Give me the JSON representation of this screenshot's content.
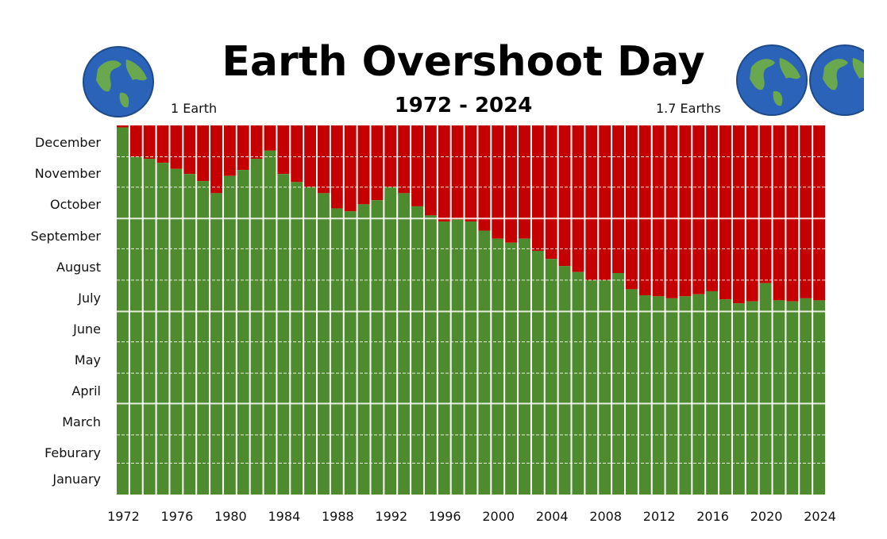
{
  "chart_data": {
    "type": "bar",
    "title": "Earth Overshoot Day",
    "subtitle": "1972 - 2024",
    "annotations": {
      "left": "1 Earth",
      "right": "1.7 Earths"
    },
    "ylabels": [
      "January",
      "Feburary",
      "March",
      "April",
      "May",
      "June",
      "July",
      "August",
      "September",
      "October",
      "November",
      "December"
    ],
    "xticks": [
      1972,
      1976,
      1980,
      1984,
      1988,
      1992,
      1996,
      2000,
      2004,
      2008,
      2012,
      2016,
      2020,
      2024
    ],
    "series": [
      {
        "values_note": "day of year of overshoot"
      }
    ],
    "x": [
      1972,
      1973,
      1974,
      1975,
      1976,
      1977,
      1978,
      1979,
      1980,
      1981,
      1982,
      1983,
      1984,
      1985,
      1986,
      1987,
      1988,
      1989,
      1990,
      1991,
      1992,
      1993,
      1994,
      1995,
      1996,
      1997,
      1998,
      1999,
      2000,
      2001,
      2002,
      2003,
      2004,
      2005,
      2006,
      2007,
      2008,
      2009,
      2010,
      2011,
      2012,
      2013,
      2014,
      2015,
      2016,
      2017,
      2018,
      2019,
      2020,
      2021,
      2022,
      2023,
      2024
    ],
    "values": [
      364,
      335,
      333,
      329,
      323,
      318,
      311,
      299,
      316,
      322,
      333,
      341,
      318,
      310,
      305,
      299,
      284,
      281,
      288,
      292,
      305,
      299,
      286,
      277,
      271,
      273,
      271,
      262,
      254,
      250,
      254,
      242,
      234,
      227,
      221,
      213,
      213,
      220,
      204,
      198,
      197,
      195,
      197,
      199,
      202,
      194,
      190,
      192,
      210,
      193,
      192,
      195,
      193
    ],
    "ylim": [
      1,
      366
    ],
    "colors": {
      "capacity": "#4e8a2e",
      "overshoot": "#c40000",
      "gap": "#ffffff"
    }
  }
}
